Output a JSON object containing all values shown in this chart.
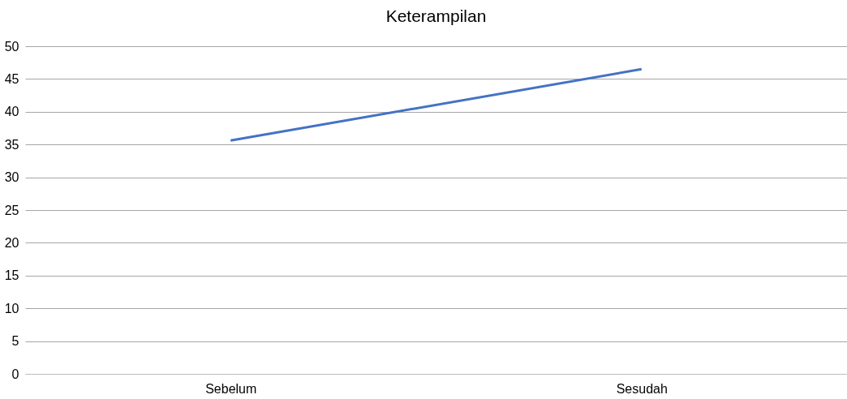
{
  "chart_data": {
    "type": "line",
    "title": "Keterampilan",
    "categories": [
      "Sebelum",
      "Sesudah"
    ],
    "series": [
      {
        "color": "#4472c4",
        "values": [
          35.6,
          46.5
        ]
      }
    ],
    "ylim": [
      0,
      50
    ],
    "yticks": [
      0,
      5,
      10,
      15,
      20,
      25,
      30,
      35,
      40,
      45,
      50
    ],
    "grid": "y",
    "marker": "none",
    "line_style": "solid"
  }
}
